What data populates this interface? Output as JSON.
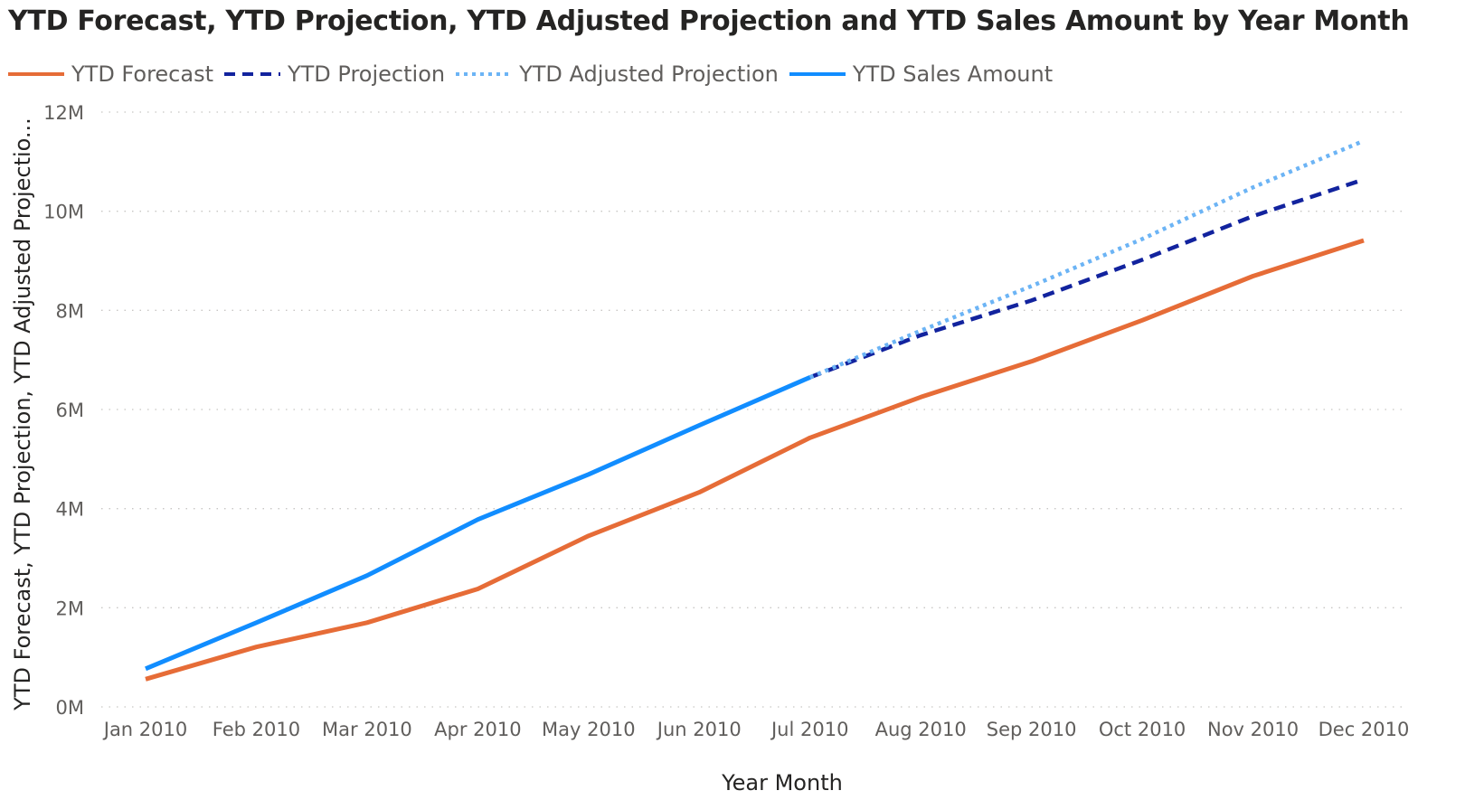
{
  "chart_data": {
    "type": "line",
    "title": "YTD Forecast, YTD Projection, YTD Adjusted Projection and YTD Sales Amount by Year Month",
    "xlabel": "Year Month",
    "ylabel": "YTD Forecast, YTD Projection, YTD Adjusted Projectio...",
    "ylim": [
      0,
      12000000
    ],
    "yticks": [
      {
        "value": 0,
        "label": "0M"
      },
      {
        "value": 2000000,
        "label": "2M"
      },
      {
        "value": 4000000,
        "label": "4M"
      },
      {
        "value": 6000000,
        "label": "6M"
      },
      {
        "value": 8000000,
        "label": "8M"
      },
      {
        "value": 10000000,
        "label": "10M"
      },
      {
        "value": 12000000,
        "label": "12M"
      }
    ],
    "categories": [
      "Jan 2010",
      "Feb 2010",
      "Mar 2010",
      "Apr 2010",
      "May 2010",
      "Jun 2010",
      "Jul 2010",
      "Aug 2010",
      "Sep 2010",
      "Oct 2010",
      "Nov 2010",
      "Dec 2010"
    ],
    "grid": true,
    "legend_position": "top-left",
    "series": [
      {
        "name": "YTD Forecast",
        "color": "#E66C37",
        "style": "solid",
        "values": [
          560000,
          1210000,
          1700000,
          2380000,
          3450000,
          4330000,
          5430000,
          6250000,
          6970000,
          7800000,
          8690000,
          9410000
        ]
      },
      {
        "name": "YTD Projection",
        "color": "#12239E",
        "style": "dashed",
        "values": [
          null,
          null,
          null,
          null,
          null,
          null,
          6650000,
          7500000,
          8200000,
          9020000,
          9900000,
          10640000
        ]
      },
      {
        "name": "YTD Adjusted Projection",
        "color": "#6CB4F5",
        "style": "dotted",
        "values": [
          null,
          null,
          null,
          null,
          null,
          null,
          6650000,
          7590000,
          8490000,
          9440000,
          10480000,
          11420000
        ]
      },
      {
        "name": "YTD Sales Amount",
        "color": "#118DFF",
        "style": "solid",
        "values": [
          770000,
          1700000,
          2650000,
          3780000,
          4690000,
          5680000,
          6650000,
          null,
          null,
          null,
          null,
          null
        ]
      }
    ]
  }
}
